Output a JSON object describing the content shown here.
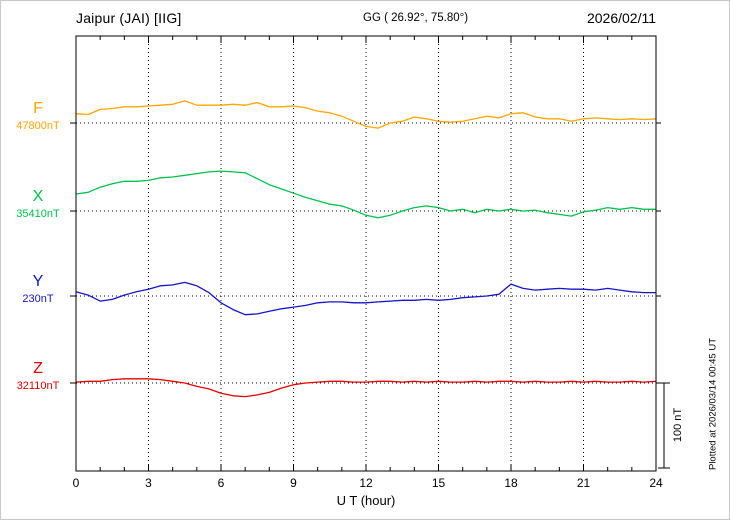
{
  "header": {
    "station": "Jaipur (JAI)  [IIG]",
    "coords": "GG ( 26.92°,  75.80°)",
    "date": "2026/02/11"
  },
  "axis": {
    "label": "U T (hour)"
  },
  "annotations": {
    "scale_bar": "100 nT",
    "plotted_at": "Plotted at 2026/03/14 00:45 UT"
  },
  "chart_data": {
    "type": "line",
    "title": "Jaipur (JAI) [IIG] magnetogram 2026/02/11",
    "xlabel": "U T (hour)",
    "x_range_hours": [
      0,
      24
    ],
    "x_ticks": [
      0,
      3,
      6,
      9,
      12,
      15,
      18,
      21,
      24
    ],
    "x_step_hours": 0.5,
    "grid": "dotted vertical lines every 3 hours; dotted horizontal baseline per trace",
    "scale_bar_nT": 100,
    "legend_position": "left of plot, one colored label per trace",
    "series": [
      {
        "name": "F",
        "color": "#FFA500",
        "baseline_label": "47800nT",
        "baseline_nT": 47800,
        "offsets_nT": [
          11,
          10,
          16,
          17,
          19,
          19,
          20,
          21,
          22,
          26,
          21,
          21,
          21,
          22,
          21,
          24,
          19,
          19,
          20,
          18,
          14,
          12,
          8,
          2,
          -4,
          -6,
          0,
          2,
          7,
          5,
          2,
          1,
          2,
          5,
          8,
          6,
          11,
          12,
          7,
          5,
          5,
          2,
          5,
          6,
          5,
          4,
          5,
          4,
          5
        ]
      },
      {
        "name": "X",
        "color": "#00C24B",
        "baseline_label": "35410nT",
        "baseline_nT": 35410,
        "offsets_nT": [
          20,
          22,
          28,
          32,
          35,
          35,
          36,
          39,
          40,
          42,
          44,
          46,
          47,
          46,
          45,
          38,
          31,
          26,
          21,
          16,
          12,
          8,
          6,
          1,
          -5,
          -8,
          -5,
          0,
          4,
          6,
          4,
          0,
          2,
          -2,
          2,
          0,
          2,
          0,
          1,
          -2,
          -4,
          -6,
          -1,
          1,
          4,
          2,
          4,
          2,
          2
        ]
      },
      {
        "name": "Y",
        "color": "#1414CC",
        "baseline_label": "230nT",
        "baseline_nT": 230,
        "offsets_nT": [
          5,
          1,
          -6,
          -4,
          1,
          5,
          8,
          12,
          13,
          16,
          12,
          4,
          -8,
          -16,
          -22,
          -21,
          -18,
          -15,
          -13,
          -11,
          -8,
          -7,
          -7,
          -8,
          -8,
          -7,
          -6,
          -5,
          -5,
          -4,
          -5,
          -4,
          -2,
          -1,
          0,
          2,
          14,
          9,
          7,
          8,
          9,
          8,
          8,
          7,
          9,
          7,
          5,
          4,
          4
        ]
      },
      {
        "name": "Z",
        "color": "#E60000",
        "baseline_label": "32110nT",
        "baseline_nT": 32110,
        "offsets_nT": [
          1,
          2,
          2,
          4,
          5,
          5,
          5,
          4,
          2,
          0,
          -4,
          -7,
          -12,
          -15,
          -16,
          -14,
          -11,
          -6,
          -2,
          0,
          1,
          2,
          2,
          1,
          1,
          2,
          2,
          1,
          2,
          1,
          2,
          1,
          1,
          2,
          1,
          2,
          2,
          1,
          2,
          1,
          1,
          2,
          1,
          2,
          1,
          1,
          2,
          1,
          2
        ]
      }
    ]
  }
}
